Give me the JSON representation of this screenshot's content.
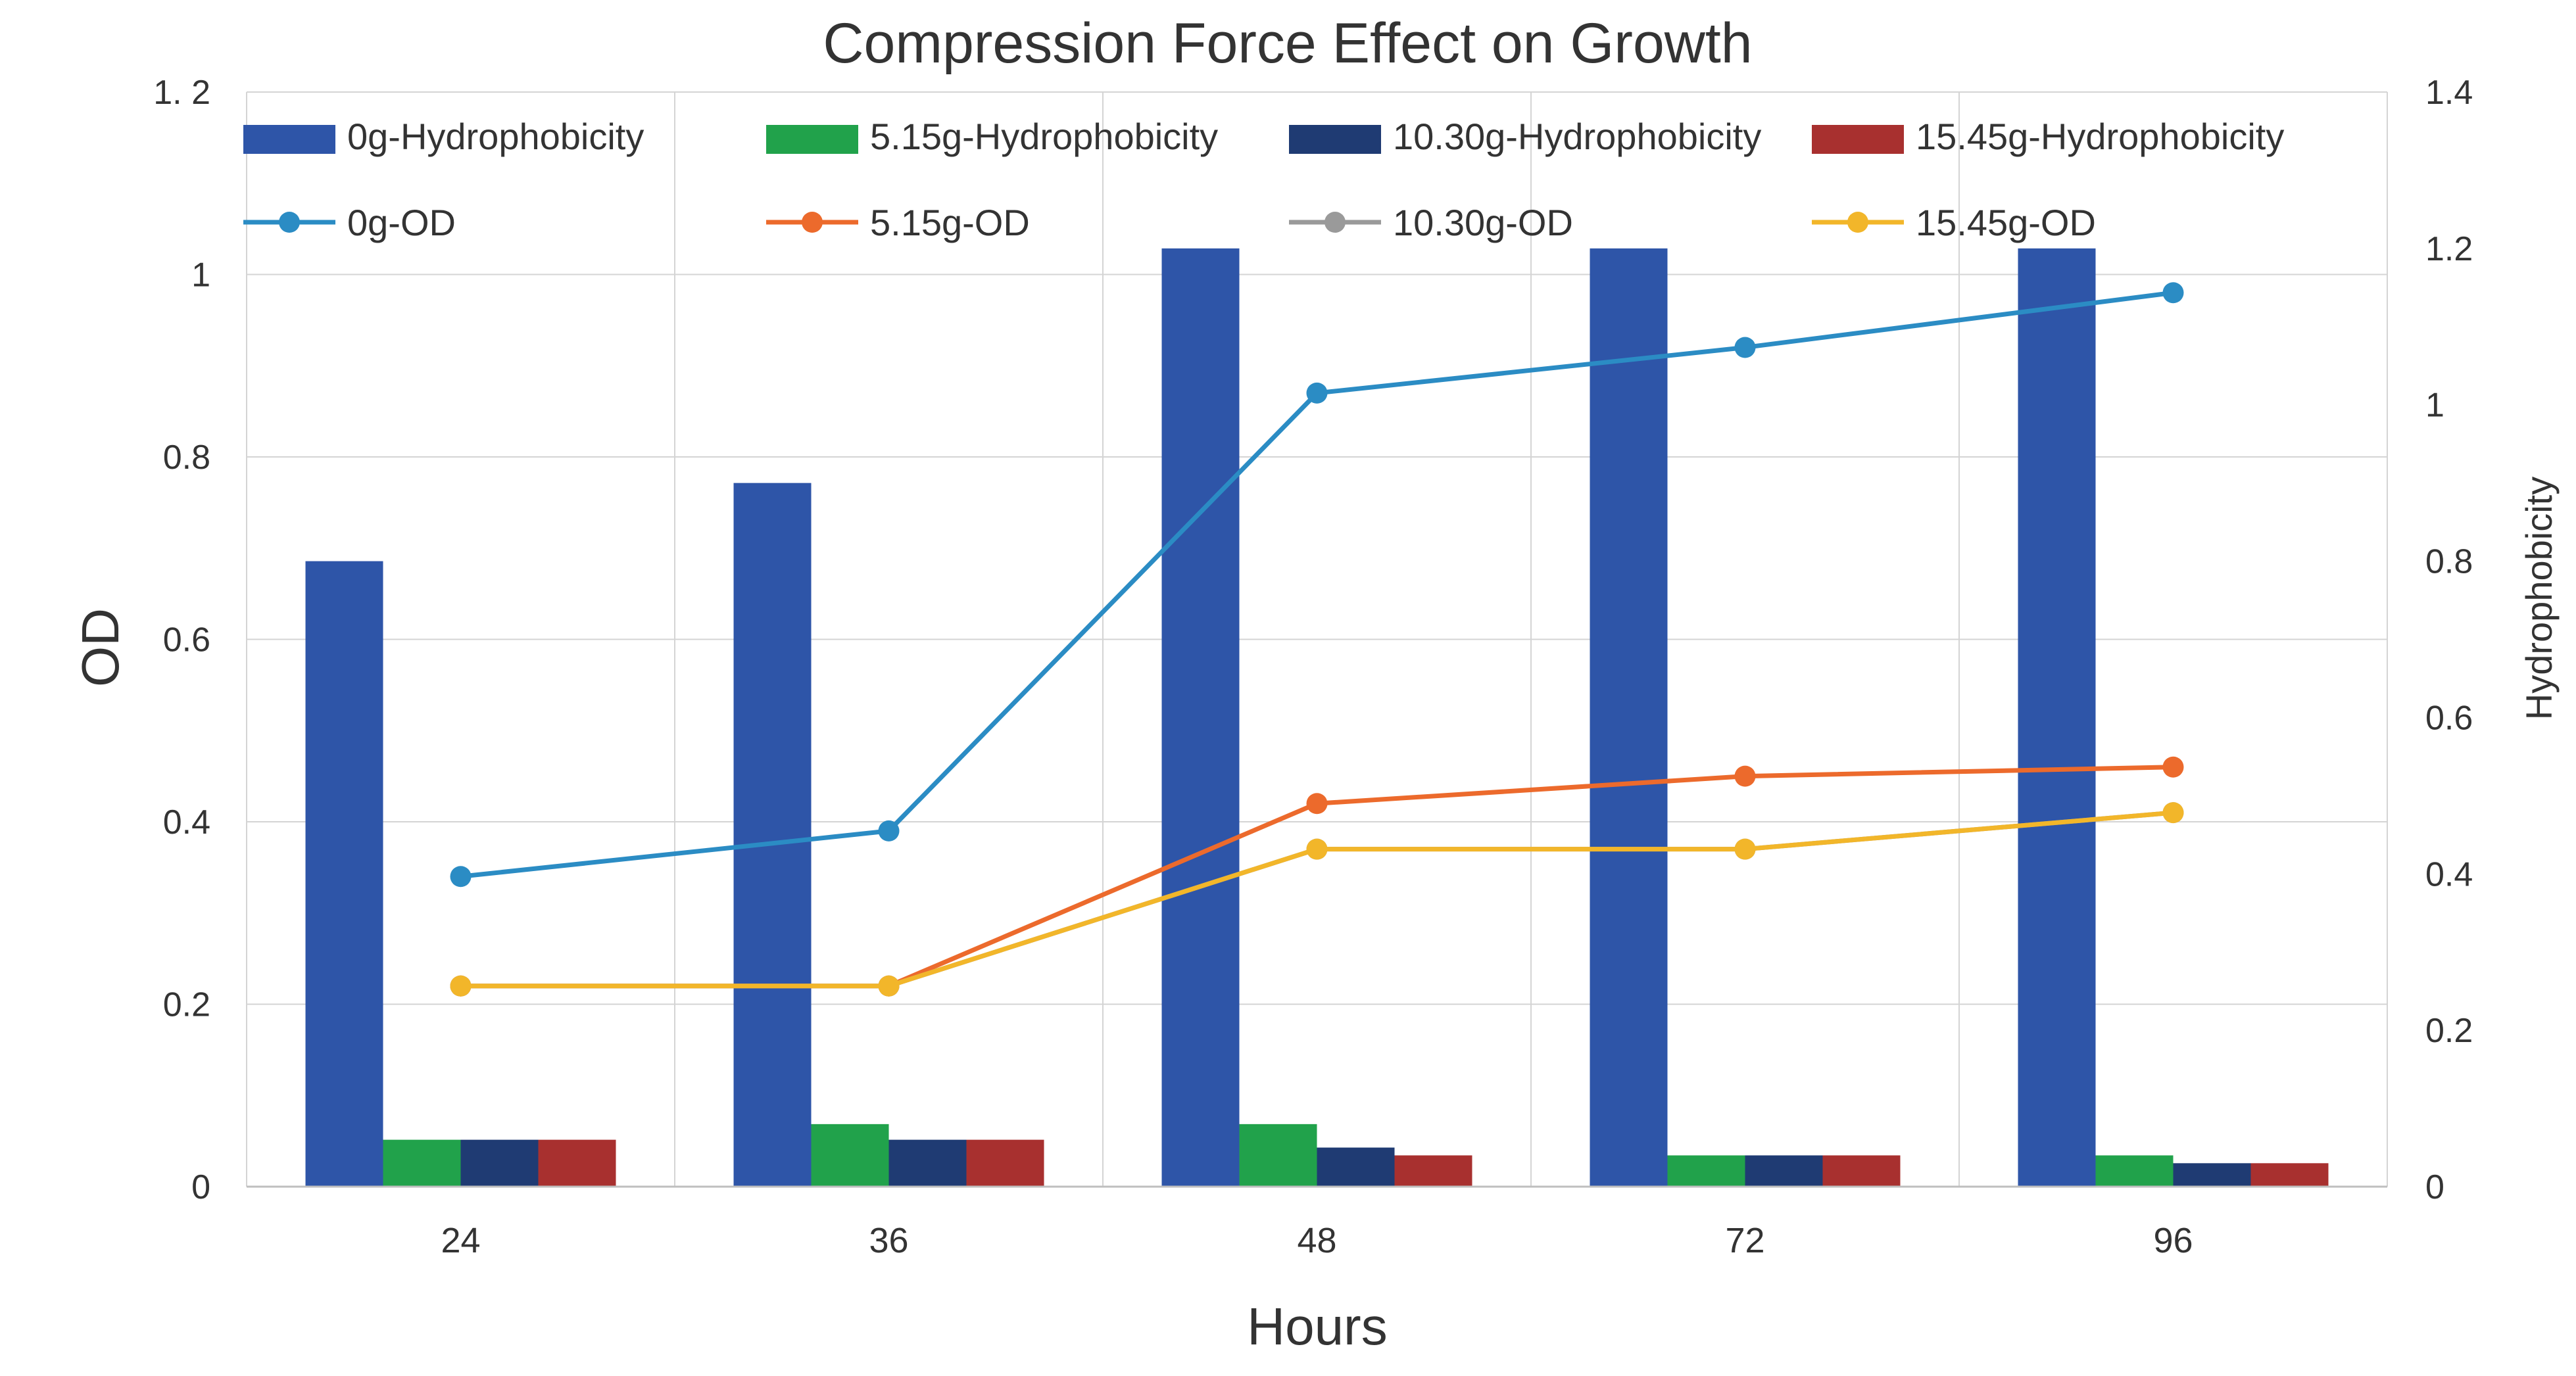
{
  "chart_data": {
    "type": "bar",
    "title": "Compression Force Effect on Growth",
    "xlabel": "Hours",
    "ylabel": "OD",
    "y2label": "Hydrophobicity",
    "categories": [
      "24",
      "36",
      "48",
      "72",
      "96"
    ],
    "ylim": [
      0,
      1.2
    ],
    "y2lim": [
      0,
      1.4
    ],
    "yticks": [
      "0",
      "0.2",
      "0.4",
      "0.6",
      "0.8",
      "1",
      "1. 2"
    ],
    "y2ticks": [
      "0",
      "0.2",
      "0.4",
      "0.6",
      "0.8",
      "1",
      "1.2",
      "1.4"
    ],
    "grid": true,
    "legend_position": "top",
    "bar_series": [
      {
        "name": "0g-Hydrophobicity",
        "color": "#2E55A8",
        "values": [
          0.8,
          0.9,
          1.2,
          1.2,
          1.2
        ]
      },
      {
        "name": "5.15g-Hydrophobicity",
        "color": "#21A24B",
        "values": [
          0.06,
          0.08,
          0.08,
          0.04,
          0.04
        ]
      },
      {
        "name": "10.30g-Hydrophobicity",
        "color": "#1F3B73",
        "values": [
          0.06,
          0.06,
          0.05,
          0.04,
          0.03
        ]
      },
      {
        "name": "15.45g-Hydrophobicity",
        "color": "#A8302F",
        "values": [
          0.06,
          0.06,
          0.04,
          0.04,
          0.03
        ]
      }
    ],
    "line_series": [
      {
        "name": "0g-OD",
        "color": "#2B8CC4",
        "values": [
          0.34,
          0.39,
          0.87,
          0.92,
          0.98
        ]
      },
      {
        "name": "5.15g-OD",
        "color": "#EC6A2C",
        "values": [
          0.22,
          0.22,
          0.42,
          0.45,
          0.46
        ]
      },
      {
        "name": "10.30g-OD",
        "color": "#9A9A9A",
        "values": [
          0.22,
          0.22,
          0.37,
          0.37,
          0.41
        ]
      },
      {
        "name": "15.45g-OD",
        "color": "#F2B62A",
        "values": [
          0.22,
          0.22,
          0.37,
          0.37,
          0.41
        ]
      }
    ]
  }
}
